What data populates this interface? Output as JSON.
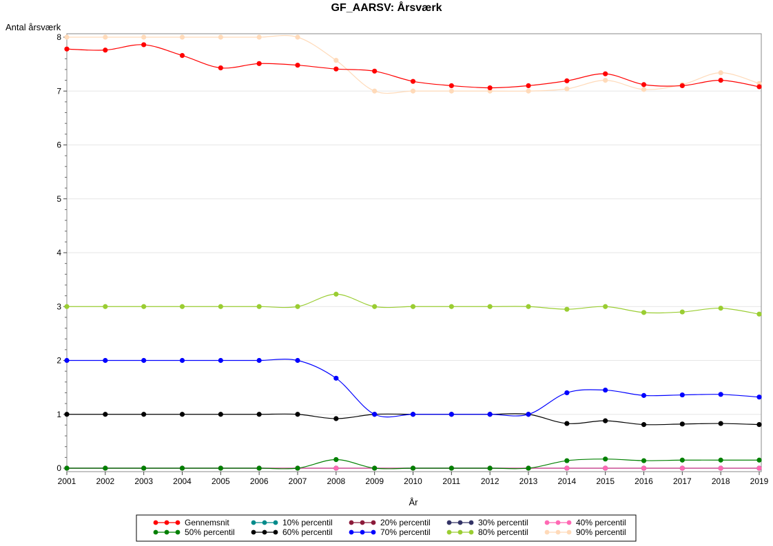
{
  "chart_data": {
    "type": "line",
    "title": "GF_AARSV: Årsværk",
    "xlabel": "År",
    "ylabel": "Antal årsværk",
    "x": [
      2001,
      2002,
      2003,
      2004,
      2005,
      2006,
      2007,
      2008,
      2009,
      2010,
      2011,
      2012,
      2013,
      2014,
      2015,
      2016,
      2017,
      2018,
      2019
    ],
    "xlim": [
      2001,
      2019
    ],
    "ylim": [
      0,
      8
    ],
    "yticks": [
      0,
      1,
      2,
      3,
      4,
      5,
      6,
      7,
      8
    ],
    "grid": "horizontal",
    "legend_position": "bottom",
    "series": [
      {
        "name": "Gennemsnit",
        "color": "#ff0000",
        "values": [
          7.78,
          7.76,
          7.86,
          7.66,
          7.43,
          7.51,
          7.48,
          7.41,
          7.37,
          7.18,
          7.1,
          7.06,
          7.1,
          7.19,
          7.32,
          7.12,
          7.1,
          7.2,
          7.08
        ]
      },
      {
        "name": "10% percentil",
        "color": "#008b8b",
        "values": [
          0,
          0,
          0,
          0,
          0,
          0,
          0,
          0,
          0,
          0,
          0,
          0,
          0,
          0,
          0,
          0,
          0,
          0,
          0
        ]
      },
      {
        "name": "20% percentil",
        "color": "#8b1a3a",
        "values": [
          0,
          0,
          0,
          0,
          0,
          0,
          0,
          0,
          0,
          0,
          0,
          0,
          0,
          0,
          0,
          0,
          0,
          0,
          0
        ]
      },
      {
        "name": "30% percentil",
        "color": "#333366",
        "values": [
          0,
          0,
          0,
          0,
          0,
          0,
          0,
          0,
          0,
          0,
          0,
          0,
          0,
          0,
          0,
          0,
          0,
          0,
          0
        ]
      },
      {
        "name": "40% percentil",
        "color": "#ff69b4",
        "values": [
          0,
          0,
          0,
          0,
          0,
          0,
          0,
          0,
          0,
          0,
          0,
          0,
          0,
          0,
          0,
          0,
          0,
          0,
          0
        ]
      },
      {
        "name": "50% percentil",
        "color": "#008000",
        "values": [
          0,
          0,
          0,
          0,
          0,
          0,
          0,
          0.16,
          0,
          0,
          0,
          0,
          0,
          0.14,
          0.17,
          0.14,
          0.15,
          0.15,
          0.15
        ]
      },
      {
        "name": "60% percentil",
        "color": "#000000",
        "values": [
          1,
          1,
          1,
          1,
          1,
          1,
          1,
          0.92,
          1,
          1,
          1,
          1,
          1,
          0.83,
          0.88,
          0.81,
          0.82,
          0.83,
          0.81
        ]
      },
      {
        "name": "70% percentil",
        "color": "#0000ff",
        "values": [
          2,
          2,
          2,
          2,
          2,
          2,
          2,
          1.67,
          1,
          1,
          1,
          1,
          1,
          1.4,
          1.45,
          1.35,
          1.36,
          1.37,
          1.32
        ]
      },
      {
        "name": "80% percentil",
        "color": "#9acd32",
        "values": [
          3,
          3,
          3,
          3,
          3,
          3,
          3,
          3.23,
          3,
          3,
          3,
          3,
          3,
          2.95,
          3,
          2.89,
          2.9,
          2.97,
          2.86
        ]
      },
      {
        "name": "90% percentil",
        "color": "#ffdab9",
        "values": [
          8,
          8,
          8,
          8,
          8,
          8,
          8,
          7.57,
          7,
          7,
          7,
          7,
          7,
          7.04,
          7.2,
          7.03,
          7.12,
          7.34,
          7.14
        ]
      }
    ]
  }
}
